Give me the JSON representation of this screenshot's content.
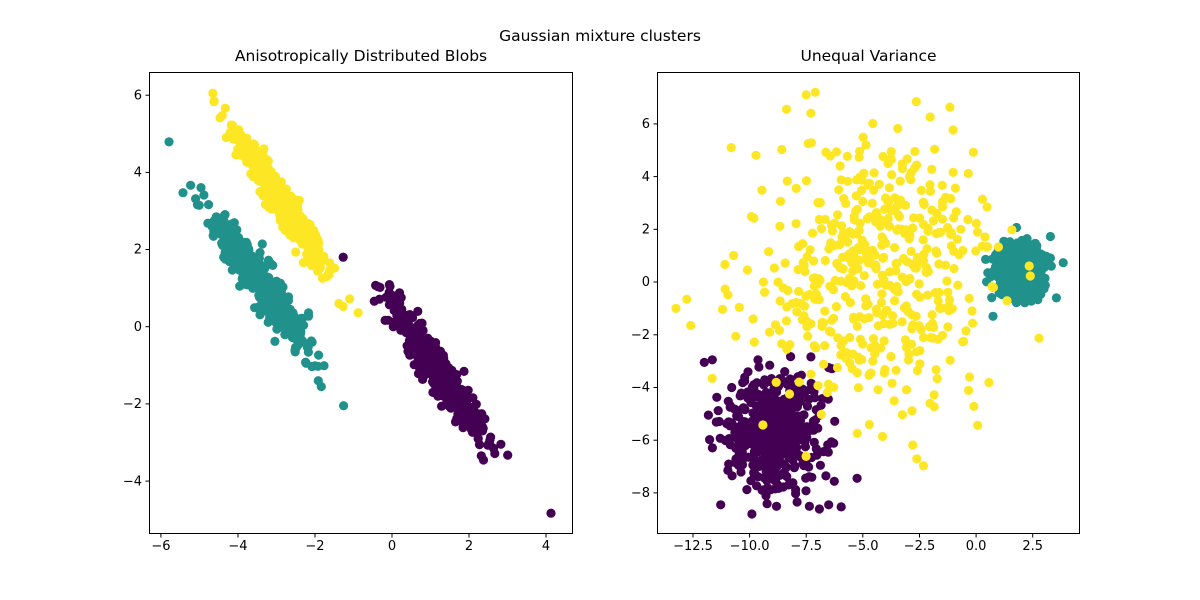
{
  "figure": {
    "suptitle": "Gaussian mixture clusters",
    "background": "#ffffff",
    "frame_color": "#000000",
    "tick_label_color": "#000000"
  },
  "chart_data": [
    {
      "id": "aniso",
      "type": "scatter",
      "title": "Anisotropically Distributed Blobs",
      "xlabel": "",
      "ylabel": "",
      "grid": false,
      "legend": null,
      "xlim": [
        -6.31,
        4.7
      ],
      "ylim": [
        -5.37,
        6.6
      ],
      "xticks": {
        "values": [
          -6,
          -4,
          -2,
          0,
          2,
          4
        ],
        "labels": [
          "−6",
          "−4",
          "−2",
          "0",
          "2",
          "4"
        ]
      },
      "yticks": {
        "values": [
          6,
          4,
          2,
          0,
          -2,
          -4
        ],
        "labels": [
          "6",
          "4",
          "2",
          "0",
          "−2",
          "−4"
        ]
      },
      "marker_radius_px": 4.6,
      "clusters": [
        {
          "name": "cluster-0-purple",
          "color": "#440154",
          "n": 500,
          "center": [
            1.25,
            -1.2
          ],
          "angle_deg": -56.3,
          "sd_major": 1.15,
          "sd_minor": 0.17,
          "seed": 101,
          "extra_points": [
            [
              4.13,
              -4.83
            ]
          ]
        },
        {
          "name": "cluster-1-teal",
          "color": "#21918c",
          "n": 500,
          "center": [
            -3.45,
            1.2
          ],
          "angle_deg": -55.0,
          "sd_major": 1.1,
          "sd_minor": 0.18,
          "seed": 202,
          "extra_points": [
            [
              -5.79,
              4.79
            ]
          ]
        },
        {
          "name": "cluster-2-yellow",
          "color": "#fde725",
          "n": 500,
          "center": [
            -2.9,
            3.3
          ],
          "angle_deg": -56.5,
          "sd_major": 1.05,
          "sd_minor": 0.14,
          "seed": 303,
          "extra_points": [
            [
              -4.65,
              6.05
            ]
          ]
        }
      ]
    },
    {
      "id": "varied",
      "type": "scatter",
      "title": "Unequal Variance",
      "xlabel": "",
      "ylabel": "",
      "grid": false,
      "legend": null,
      "xlim": [
        -14.09,
        4.59
      ],
      "ylim": [
        -9.56,
        7.97
      ],
      "xticks": {
        "values": [
          -12.5,
          -10.0,
          -7.5,
          -5.0,
          -2.5,
          0.0,
          2.5
        ],
        "labels": [
          "−12.5",
          "−10.0",
          "−7.5",
          "−5.0",
          "−2.5",
          "0.0",
          "2.5"
        ]
      },
      "yticks": {
        "values": [
          6,
          4,
          2,
          0,
          -2,
          -4,
          -6,
          -8
        ],
        "labels": [
          "6",
          "4",
          "2",
          "0",
          "−2",
          "−4",
          "−6",
          "−8"
        ]
      },
      "marker_radius_px": 4.6,
      "clusters": [
        {
          "name": "cluster-0-purple",
          "color": "#440154",
          "n": 500,
          "center": [
            -8.9,
            -5.6
          ],
          "angle_deg": 0,
          "sd_major": 1.05,
          "sd_minor": 1.05,
          "seed": 404,
          "extra_points": [
            [
              -12.0,
              -3.05
            ],
            [
              -11.65,
              -2.95
            ],
            [
              -9.9,
              -8.8
            ]
          ]
        },
        {
          "name": "cluster-1-teal",
          "color": "#21918c",
          "n": 500,
          "center": [
            1.95,
            0.45
          ],
          "angle_deg": 0,
          "sd_major": 0.5,
          "sd_minor": 0.5,
          "seed": 505,
          "extra_points": [
            [
              0.75,
              -1.3
            ],
            [
              3.55,
              -0.6
            ]
          ]
        },
        {
          "name": "cluster-2-yellow",
          "color": "#fde725",
          "n": 500,
          "center": [
            -4.4,
            0.3
          ],
          "angle_deg": 0,
          "sd_major": 2.6,
          "sd_minor": 2.6,
          "seed": 606,
          "extra_points": [
            [
              -13.25,
              -1.0
            ],
            [
              -12.6,
              -1.65
            ],
            [
              -7.5,
              7.1
            ],
            [
              -7.1,
              7.2
            ]
          ]
        }
      ]
    }
  ]
}
